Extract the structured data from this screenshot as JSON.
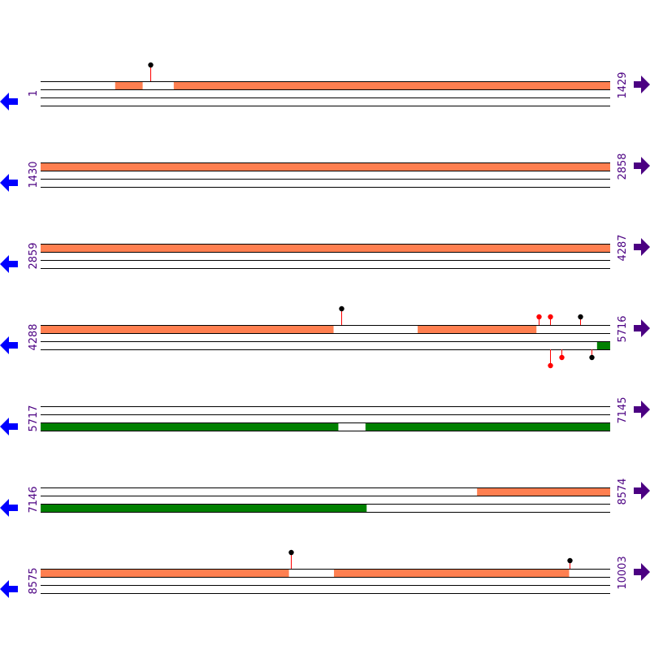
{
  "colors": {
    "forward_feature": "#ff7f50",
    "reverse_feature": "#008000",
    "stem": "#ff0000",
    "marker_black": "#000000",
    "marker_red": "#ff0000",
    "label": "#4b0082",
    "left_arrow": "#0000ff",
    "right_arrow": "#4b0082"
  },
  "icons": {
    "left": "arrow-left-icon",
    "right": "arrow-right-icon"
  },
  "rows": [
    {
      "start": "1",
      "end": "1429",
      "s": 1,
      "e": 1429,
      "top": [
        [
          188,
          256
        ],
        [
          335,
          1429
        ]
      ],
      "bottom": [],
      "markers_top": [
        {
          "pos": 276,
          "level": 2,
          "head": "black"
        }
      ],
      "markers_bottom": []
    },
    {
      "start": "1430",
      "end": "2858",
      "s": 1430,
      "e": 2858,
      "top": [
        [
          1430,
          2858
        ]
      ],
      "bottom": [],
      "markers_top": [],
      "markers_bottom": []
    },
    {
      "start": "2859",
      "end": "4287",
      "s": 2859,
      "e": 4287,
      "top": [
        [
          2859,
          4287
        ]
      ],
      "bottom": [],
      "markers_top": [],
      "markers_bottom": []
    },
    {
      "start": "4288",
      "end": "5716",
      "s": 4288,
      "e": 5716,
      "top": [
        [
          4288,
          5022
        ],
        [
          5234,
          5531
        ]
      ],
      "bottom": [
        [
          5684,
          5716
        ]
      ],
      "markers_top": [
        {
          "pos": 5042,
          "level": 2,
          "head": "black"
        },
        {
          "pos": 5538,
          "level": 1,
          "head": "red"
        },
        {
          "pos": 5566,
          "level": 1,
          "head": "red"
        },
        {
          "pos": 5642,
          "level": 1,
          "head": "black"
        }
      ],
      "markers_bottom": [
        {
          "pos": 5566,
          "level": 2,
          "head": "red"
        },
        {
          "pos": 5595,
          "level": 1,
          "head": "red"
        },
        {
          "pos": 5670,
          "level": 1,
          "head": "black"
        }
      ]
    },
    {
      "start": "5717",
      "end": "7145",
      "s": 5717,
      "e": 7145,
      "top": [],
      "bottom": [
        [
          5717,
          6463
        ],
        [
          6532,
          7145
        ]
      ],
      "markers_top": [],
      "markers_bottom": []
    },
    {
      "start": "7146",
      "end": "8574",
      "s": 7146,
      "e": 8574,
      "top": [
        [
          8241,
          8574
        ]
      ],
      "bottom": [
        [
          7146,
          7963
        ]
      ],
      "markers_top": [],
      "markers_bottom": []
    },
    {
      "start": "8575",
      "end": "10003",
      "s": 8575,
      "e": 10003,
      "top": [
        [
          8575,
          9197
        ],
        [
          9311,
          9900
        ]
      ],
      "bottom": [],
      "markers_top": [
        {
          "pos": 9203,
          "level": 2,
          "head": "black"
        },
        {
          "pos": 9902,
          "level": 1,
          "head": "black"
        }
      ],
      "markers_bottom": []
    }
  ]
}
